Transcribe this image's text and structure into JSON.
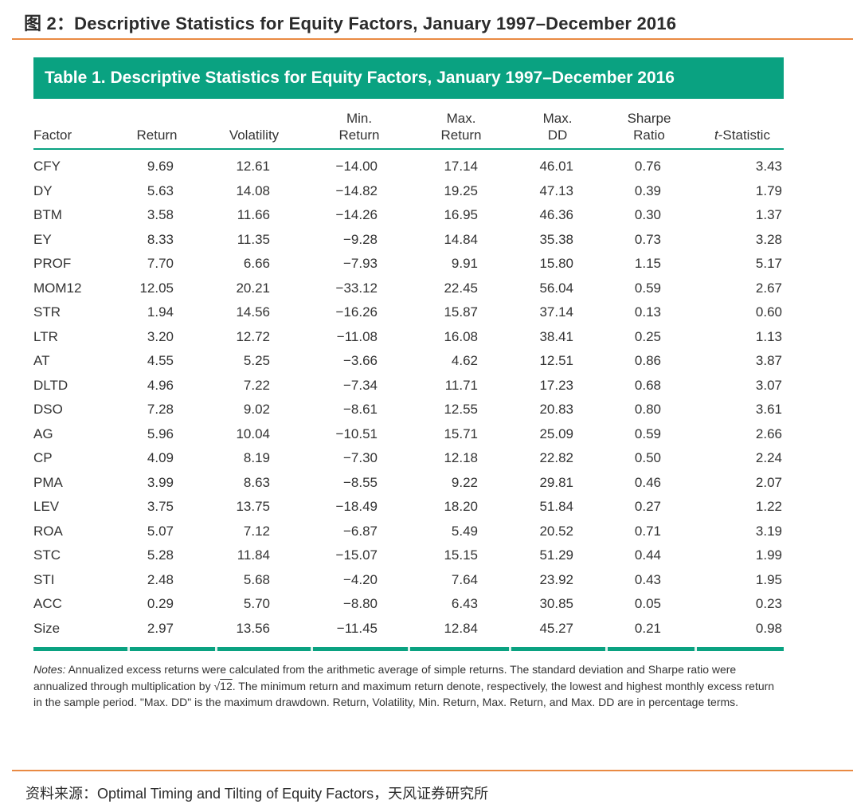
{
  "figure_title": "图 2：Descriptive Statistics for Equity Factors, January 1997–December 2016",
  "table_title": "Table 1.   Descriptive Statistics for Equity Factors, January 1997–December 2016",
  "headers": {
    "factor": "Factor",
    "return": "Return",
    "volatility": "Volatility",
    "min_return_1": "Min.",
    "min_return_2": "Return",
    "max_return_1": "Max.",
    "max_return_2": "Return",
    "max_dd_1": "Max.",
    "max_dd_2": "DD",
    "sharpe_1": "Sharpe",
    "sharpe_2": "Ratio",
    "t_stat_italic": "t",
    "t_stat_rest": "-Statistic"
  },
  "rows": [
    [
      "CFY",
      "9.69",
      "12.61",
      "−14.00",
      "17.14",
      "46.01",
      "0.76",
      "3.43"
    ],
    [
      "DY",
      "5.63",
      "14.08",
      "−14.82",
      "19.25",
      "47.13",
      "0.39",
      "1.79"
    ],
    [
      "BTM",
      "3.58",
      "11.66",
      "−14.26",
      "16.95",
      "46.36",
      "0.30",
      "1.37"
    ],
    [
      "EY",
      "8.33",
      "11.35",
      "−9.28",
      "14.84",
      "35.38",
      "0.73",
      "3.28"
    ],
    [
      "PROF",
      "7.70",
      "6.66",
      "−7.93",
      "9.91",
      "15.80",
      "1.15",
      "5.17"
    ],
    [
      "MOM12",
      "12.05",
      "20.21",
      "−33.12",
      "22.45",
      "56.04",
      "0.59",
      "2.67"
    ],
    [
      "STR",
      "1.94",
      "14.56",
      "−16.26",
      "15.87",
      "37.14",
      "0.13",
      "0.60"
    ],
    [
      "LTR",
      "3.20",
      "12.72",
      "−11.08",
      "16.08",
      "38.41",
      "0.25",
      "1.13"
    ],
    [
      "AT",
      "4.55",
      "5.25",
      "−3.66",
      "4.62",
      "12.51",
      "0.86",
      "3.87"
    ],
    [
      "DLTD",
      "4.96",
      "7.22",
      "−7.34",
      "11.71",
      "17.23",
      "0.68",
      "3.07"
    ],
    [
      "DSO",
      "7.28",
      "9.02",
      "−8.61",
      "12.55",
      "20.83",
      "0.80",
      "3.61"
    ],
    [
      "AG",
      "5.96",
      "10.04",
      "−10.51",
      "15.71",
      "25.09",
      "0.59",
      "2.66"
    ],
    [
      "CP",
      "4.09",
      "8.19",
      "−7.30",
      "12.18",
      "22.82",
      "0.50",
      "2.24"
    ],
    [
      "PMA",
      "3.99",
      "8.63",
      "−8.55",
      "9.22",
      "29.81",
      "0.46",
      "2.07"
    ],
    [
      "LEV",
      "3.75",
      "13.75",
      "−18.49",
      "18.20",
      "51.84",
      "0.27",
      "1.22"
    ],
    [
      "ROA",
      "5.07",
      "7.12",
      "−6.87",
      "5.49",
      "20.52",
      "0.71",
      "3.19"
    ],
    [
      "STC",
      "5.28",
      "11.84",
      "−15.07",
      "15.15",
      "51.29",
      "0.44",
      "1.99"
    ],
    [
      "STI",
      "2.48",
      "5.68",
      "−4.20",
      "7.64",
      "23.92",
      "0.43",
      "1.95"
    ],
    [
      "ACC",
      "0.29",
      "5.70",
      "−8.80",
      "6.43",
      "30.85",
      "0.05",
      "0.23"
    ],
    [
      "Size",
      "2.97",
      "13.56",
      "−11.45",
      "12.84",
      "45.27",
      "0.21",
      "0.98"
    ]
  ],
  "notes": {
    "label": "Notes:",
    "text_1": " Annualized excess returns were calculated from the arithmetic average of simple returns. The standard deviation and Sharpe ratio were annualized through multiplication by √",
    "sqrt_value": "12",
    "text_2": ". The minimum return and maximum return denote, respectively, the lowest and highest monthly excess return in the sample period. \"Max. DD\" is the maximum drawdown. Return, Volatility, Min. Return, Max. Return, and Max. DD are in percentage terms."
  },
  "source": "资料来源：Optimal Timing and Tilting of Equity Factors，天风证券研究所",
  "colors": {
    "accent_green": "#0aa281",
    "orange_rule": "#e98a43"
  }
}
